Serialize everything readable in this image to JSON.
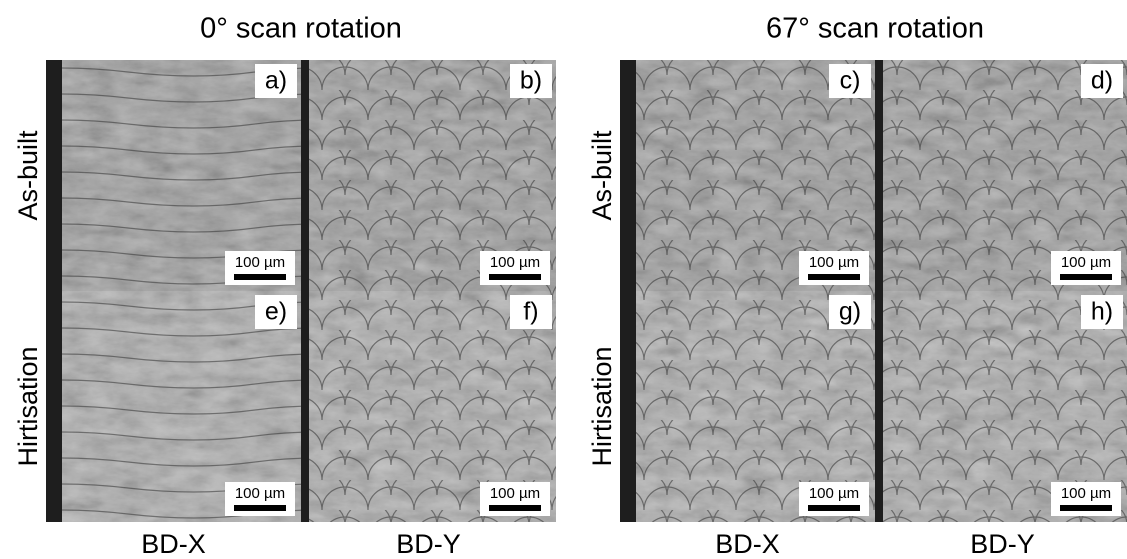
{
  "groups": [
    {
      "title": "0° scan rotation",
      "row_labels": [
        "As-built",
        "Hirtisation"
      ],
      "column_labels": [
        "BD-X",
        "BD-Y"
      ],
      "panels": [
        {
          "label": "a)",
          "scale_bar": "100 µm"
        },
        {
          "label": "b)",
          "scale_bar": "100 µm"
        },
        {
          "label": "e)",
          "scale_bar": "100 µm"
        },
        {
          "label": "f)",
          "scale_bar": "100 µm"
        }
      ]
    },
    {
      "title": "67° scan rotation",
      "row_labels": [
        "As-built",
        "Hirtisation"
      ],
      "column_labels": [
        "BD-X",
        "BD-Y"
      ],
      "panels": [
        {
          "label": "c)",
          "scale_bar": "100 µm"
        },
        {
          "label": "d)",
          "scale_bar": "100 µm"
        },
        {
          "label": "g)",
          "scale_bar": "100 µm"
        },
        {
          "label": "h)",
          "scale_bar": "100 µm"
        }
      ]
    }
  ]
}
